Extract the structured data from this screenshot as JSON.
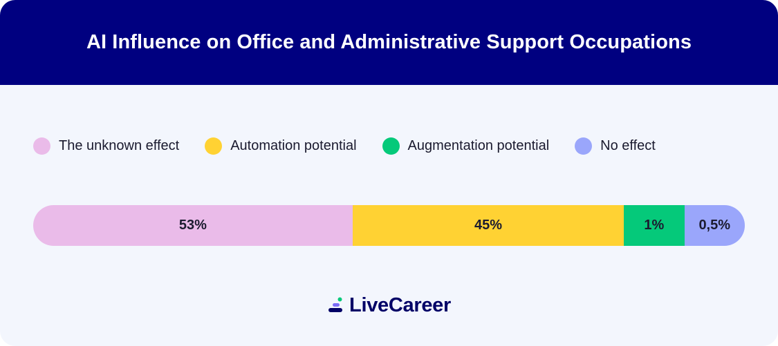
{
  "header": {
    "title": "AI Influence on Office and Administrative Support Occupations"
  },
  "brand": {
    "name": "LiveCareer"
  },
  "colors": {
    "header_bg": "#000080",
    "card_bg": "#f3f6fd",
    "unknown": "#eabbe9",
    "automation": "#ffd233",
    "augmentation": "#05c97a",
    "no_effect": "#9aa6fb"
  },
  "chart_data": {
    "type": "bar",
    "orientation": "horizontal-stacked",
    "title": "AI Influence on Office and Administrative Support Occupations",
    "legend_position": "top",
    "grid": false,
    "categories": [
      "The unknown effect",
      "Automation potential",
      "Augmentation potential",
      "No effect"
    ],
    "series": [
      {
        "name": "The unknown effect",
        "value": 53,
        "label": "53%",
        "color": "#eabbe9"
      },
      {
        "name": "Automation potential",
        "value": 45,
        "label": "45%",
        "color": "#ffd233"
      },
      {
        "name": "Augmentation potential",
        "value": 1,
        "label": "1%",
        "color": "#05c97a"
      },
      {
        "name": "No effect",
        "value": 0.5,
        "label": "0,5%",
        "color": "#9aa6fb"
      }
    ]
  }
}
